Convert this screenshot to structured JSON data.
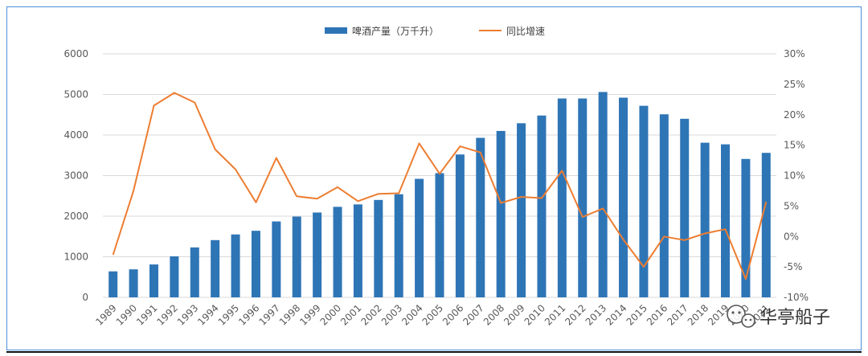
{
  "colors": {
    "bar": "#2e75b6",
    "line": "#ed7d31",
    "frame": "#4a90d9"
  },
  "legend": {
    "bar_label": "啤酒产量（万千升）",
    "line_label": "同比增速"
  },
  "watermark": {
    "text": "华亭船子",
    "icon": "wechat-icon"
  },
  "chart_data": {
    "type": "bar+line",
    "categories": [
      "1989",
      "1990",
      "1991",
      "1992",
      "1993",
      "1994",
      "1995",
      "1996",
      "1997",
      "1998",
      "1999",
      "2000",
      "2001",
      "2002",
      "2003",
      "2004",
      "2005",
      "2006",
      "2007",
      "2008",
      "2009",
      "2010",
      "2011",
      "2012",
      "2013",
      "2014",
      "2015",
      "2016",
      "2017",
      "2018",
      "2019",
      "2020",
      "2021"
    ],
    "series": [
      {
        "name": "啤酒产量（万千升）",
        "type": "bar",
        "axis": "left",
        "values": [
          640,
          690,
          810,
          1010,
          1230,
          1410,
          1550,
          1640,
          1870,
          1990,
          2090,
          2230,
          2290,
          2400,
          2540,
          2920,
          3060,
          3520,
          3930,
          4100,
          4290,
          4480,
          4900,
          4900,
          5060,
          4920,
          4720,
          4510,
          4400,
          3810,
          3770,
          3410,
          3560
        ]
      },
      {
        "name": "同比增速",
        "type": "line",
        "axis": "right",
        "values": [
          -3,
          7.5,
          21.5,
          23.6,
          22,
          14.3,
          11,
          5.6,
          12.9,
          6.6,
          6.2,
          8.1,
          5.8,
          7,
          7.1,
          15.3,
          10.3,
          14.8,
          13.8,
          5.5,
          6.5,
          6.3,
          10.8,
          3.2,
          4.6,
          -0.5,
          -5,
          0,
          -0.6,
          0.5,
          1.2,
          -7,
          5.7
        ]
      }
    ],
    "y_left": {
      "lim": [
        0,
        6000
      ],
      "ticks": [
        "0",
        "1000",
        "2000",
        "3000",
        "4000",
        "5000",
        "6000"
      ]
    },
    "y_right": {
      "lim": [
        -10,
        30
      ],
      "ticks": [
        "-10%",
        "-5%",
        "0%",
        "5%",
        "10%",
        "15%",
        "20%",
        "25%",
        "30%"
      ]
    },
    "grid": true,
    "legend_position": "top-center"
  }
}
